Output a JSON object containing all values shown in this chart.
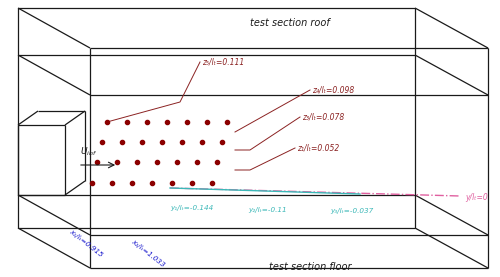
{
  "title": "test section roof",
  "floor_label": "test section floor",
  "bg_color": "#ffffff",
  "box_color": "#1a1a1a",
  "dot_color": "#8b0000",
  "z_label_color": "#8b2222",
  "x_label_color": "#1a1acd",
  "y_cyan_color": "#3cb8b8",
  "y_pink_color": "#e060a0",
  "z_labels": [
    "z₅/lₜ=0.111",
    "z₄/lₜ=0.098",
    "z₃/lₜ=0.078",
    "z₁/lₜ=0.052"
  ],
  "x_labels": [
    "x₁/lₜ=0.915",
    "x₂/lₜ=1.033"
  ],
  "y_labels_cyan": [
    "y₁/lₜ=-0.144",
    "y₂/lₜ=-0.11",
    "y₃/lₜ=-0.037"
  ],
  "y_label_pink": "y/lₜ=0",
  "u_inf_label": "U_{inf}"
}
